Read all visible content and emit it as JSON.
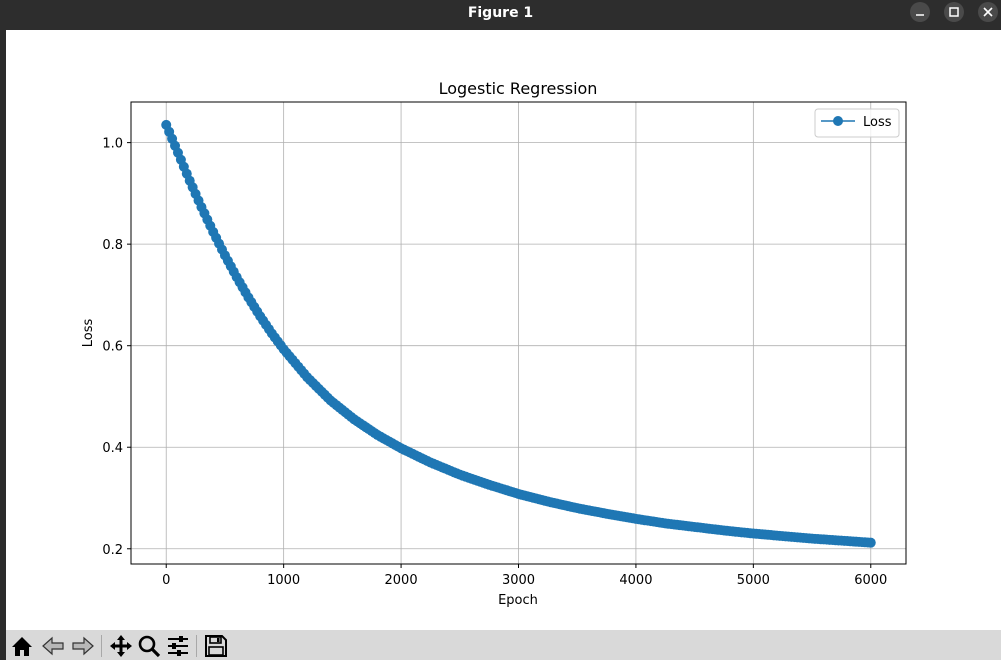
{
  "window": {
    "title": "Figure 1"
  },
  "window_controls": {
    "minimize": "minimize-icon",
    "maximize": "maximize-icon",
    "close": "close-icon"
  },
  "toolbar": {
    "buttons": [
      "home-icon",
      "back-icon",
      "forward-icon",
      "pan-icon",
      "zoom-icon",
      "configure-subplots-icon",
      "save-icon"
    ]
  },
  "colors": {
    "series": "#1f77b4",
    "grid": "#b0b0b0",
    "titlebar": "#2d2d2d",
    "toolbar": "#d9d9d9"
  },
  "chart_data": {
    "type": "line",
    "title": "Logestic Regression",
    "xlabel": "Epoch",
    "ylabel": "Loss",
    "xlim": [
      -300,
      6300
    ],
    "ylim": [
      0.17,
      1.08
    ],
    "xticks": [
      0,
      1000,
      2000,
      3000,
      4000,
      5000,
      6000
    ],
    "xtick_labels": [
      "0",
      "1000",
      "2000",
      "3000",
      "4000",
      "5000",
      "6000"
    ],
    "yticks": [
      0.2,
      0.4,
      0.6,
      0.8,
      1.0
    ],
    "ytick_labels": [
      "0.2",
      "0.4",
      "0.6",
      "0.8",
      "1.0"
    ],
    "grid": true,
    "legend": {
      "position": "top-right",
      "entries": [
        "Loss"
      ]
    },
    "series": [
      {
        "name": "Loss",
        "marker": "circle",
        "x": [
          0,
          100,
          200,
          300,
          400,
          500,
          600,
          700,
          800,
          900,
          1000,
          1200,
          1400,
          1600,
          1800,
          2000,
          2250,
          2500,
          2750,
          3000,
          3250,
          3500,
          3750,
          4000,
          4250,
          4500,
          4750,
          5000,
          5250,
          5500,
          5750,
          6000
        ],
        "y": [
          1.035,
          0.98,
          0.925,
          0.873,
          0.824,
          0.778,
          0.735,
          0.695,
          0.658,
          0.624,
          0.593,
          0.538,
          0.492,
          0.455,
          0.424,
          0.398,
          0.37,
          0.346,
          0.326,
          0.308,
          0.293,
          0.28,
          0.269,
          0.259,
          0.25,
          0.243,
          0.236,
          0.23,
          0.225,
          0.22,
          0.216,
          0.212
        ]
      }
    ]
  }
}
